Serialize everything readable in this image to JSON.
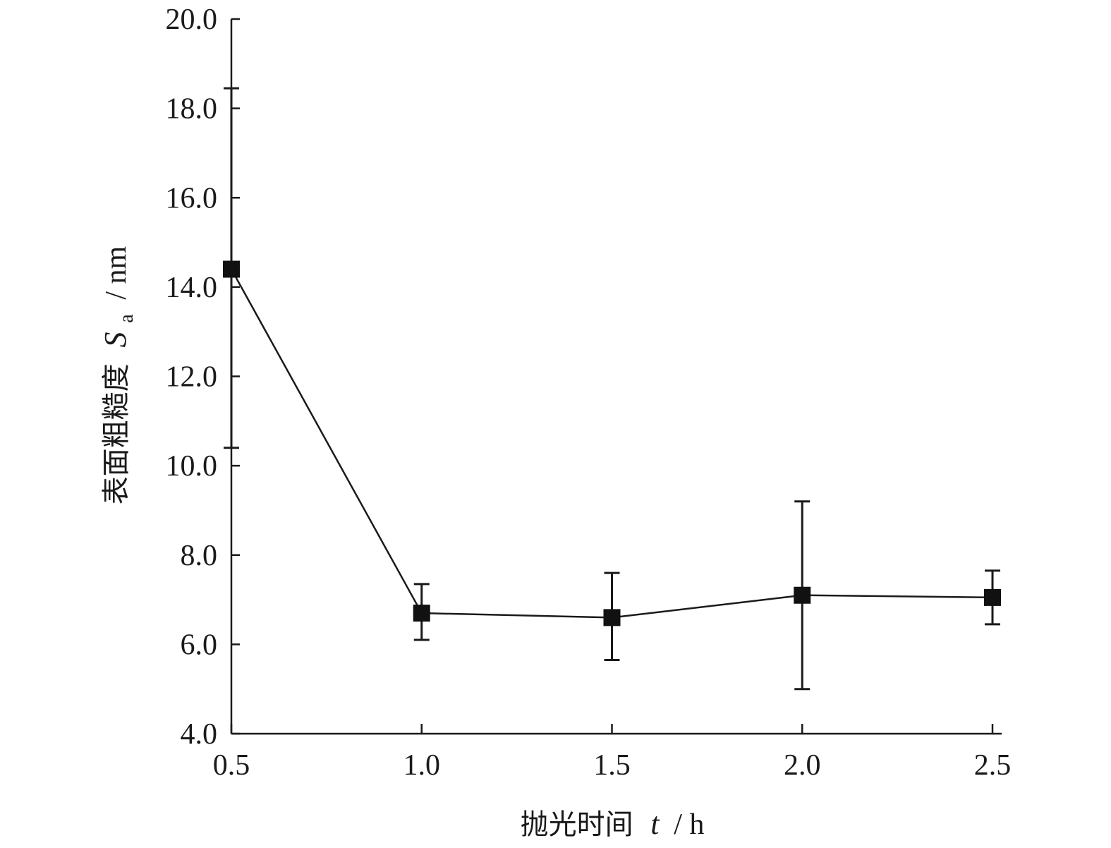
{
  "chart_data": {
    "type": "line",
    "x": [
      0.5,
      1.0,
      1.5,
      2.0,
      2.5
    ],
    "series": [
      {
        "values": [
          14.4,
          6.7,
          6.6,
          7.1,
          7.05
        ],
        "error_low": [
          10.4,
          6.1,
          5.65,
          5.0,
          6.45
        ],
        "error_high": [
          18.45,
          7.35,
          7.6,
          9.2,
          7.65
        ]
      }
    ],
    "xlim": [
      0.5,
      2.5
    ],
    "ylim": [
      4.0,
      20.0
    ],
    "x_ticks": [
      "0.5",
      "1.0",
      "1.5",
      "2.0",
      "2.5"
    ],
    "y_ticks": [
      "4.0",
      "6.0",
      "8.0",
      "10.0",
      "12.0",
      "14.0",
      "16.0",
      "18.0",
      "20.0"
    ],
    "xlabel": {
      "text": "抛光时间",
      "var": "t",
      "unit": "/ h"
    },
    "ylabel": {
      "text": "表面粗糙度",
      "var": "S",
      "sub": "a",
      "unit": "/ nm"
    },
    "grid": false,
    "colors": {
      "line": "#1a1a1a",
      "marker": "#111111",
      "axis": "#1a1a1a"
    }
  }
}
